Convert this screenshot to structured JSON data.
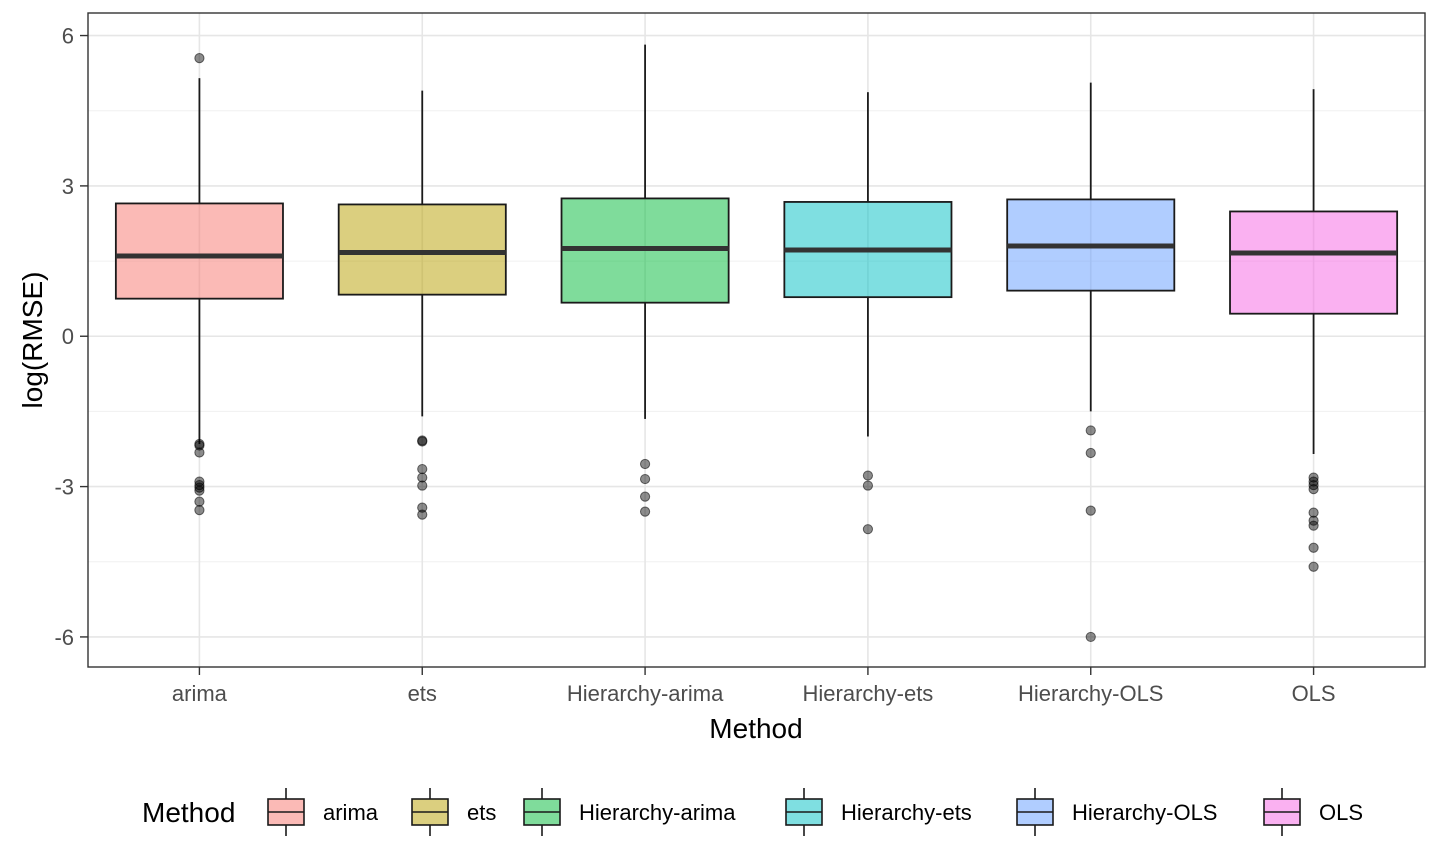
{
  "chart_data": {
    "type": "boxplot",
    "xlabel": "Method",
    "ylabel": "log(RMSE)",
    "ylim": [
      -6.6,
      6.45
    ],
    "yticks": [
      -6,
      -3,
      0,
      3,
      6
    ],
    "ytick_labels": [
      "-6",
      "-3",
      "0",
      "3",
      "6"
    ],
    "grid": true,
    "legend_position": "bottom",
    "legend_title": "Method",
    "categories": [
      "arima",
      "ets",
      "Hierarchy-arima",
      "Hierarchy-ets",
      "Hierarchy-OLS",
      "OLS"
    ],
    "colors": [
      "#F8766D",
      "#B79F00",
      "#00BA38",
      "#00BFC4",
      "#619CFF",
      "#F564E3"
    ],
    "boxes": [
      {
        "name": "arima",
        "lower_whisker": -2.15,
        "q1": 0.75,
        "median": 1.6,
        "q3": 2.65,
        "upper_whisker": 5.15,
        "outliers": [
          5.55,
          -2.15,
          -2.18,
          -2.32,
          -2.9,
          -2.97,
          -3.02,
          -3.08,
          -3.3,
          -3.47
        ]
      },
      {
        "name": "ets",
        "lower_whisker": -1.6,
        "q1": 0.83,
        "median": 1.67,
        "q3": 2.63,
        "upper_whisker": 4.9,
        "outliers": [
          -2.08,
          -2.1,
          -2.65,
          -2.82,
          -2.98,
          -3.42,
          -3.56
        ]
      },
      {
        "name": "Hierarchy-arima",
        "lower_whisker": -1.65,
        "q1": 0.67,
        "median": 1.75,
        "q3": 2.75,
        "upper_whisker": 5.82,
        "outliers": [
          -2.55,
          -2.85,
          -3.2,
          -3.5
        ]
      },
      {
        "name": "Hierarchy-ets",
        "lower_whisker": -2.0,
        "q1": 0.78,
        "median": 1.72,
        "q3": 2.68,
        "upper_whisker": 4.87,
        "outliers": [
          -2.78,
          -2.98,
          -3.85
        ]
      },
      {
        "name": "Hierarchy-OLS",
        "lower_whisker": -1.5,
        "q1": 0.91,
        "median": 1.8,
        "q3": 2.73,
        "upper_whisker": 5.06,
        "outliers": [
          -1.88,
          -2.33,
          -3.48,
          -6.0
        ]
      },
      {
        "name": "OLS",
        "lower_whisker": -2.35,
        "q1": 0.45,
        "median": 1.66,
        "q3": 2.49,
        "upper_whisker": 4.93,
        "outliers": [
          -2.82,
          -2.9,
          -2.97,
          -3.05,
          -3.52,
          -3.68,
          -3.78,
          -4.22,
          -4.6
        ]
      }
    ]
  }
}
